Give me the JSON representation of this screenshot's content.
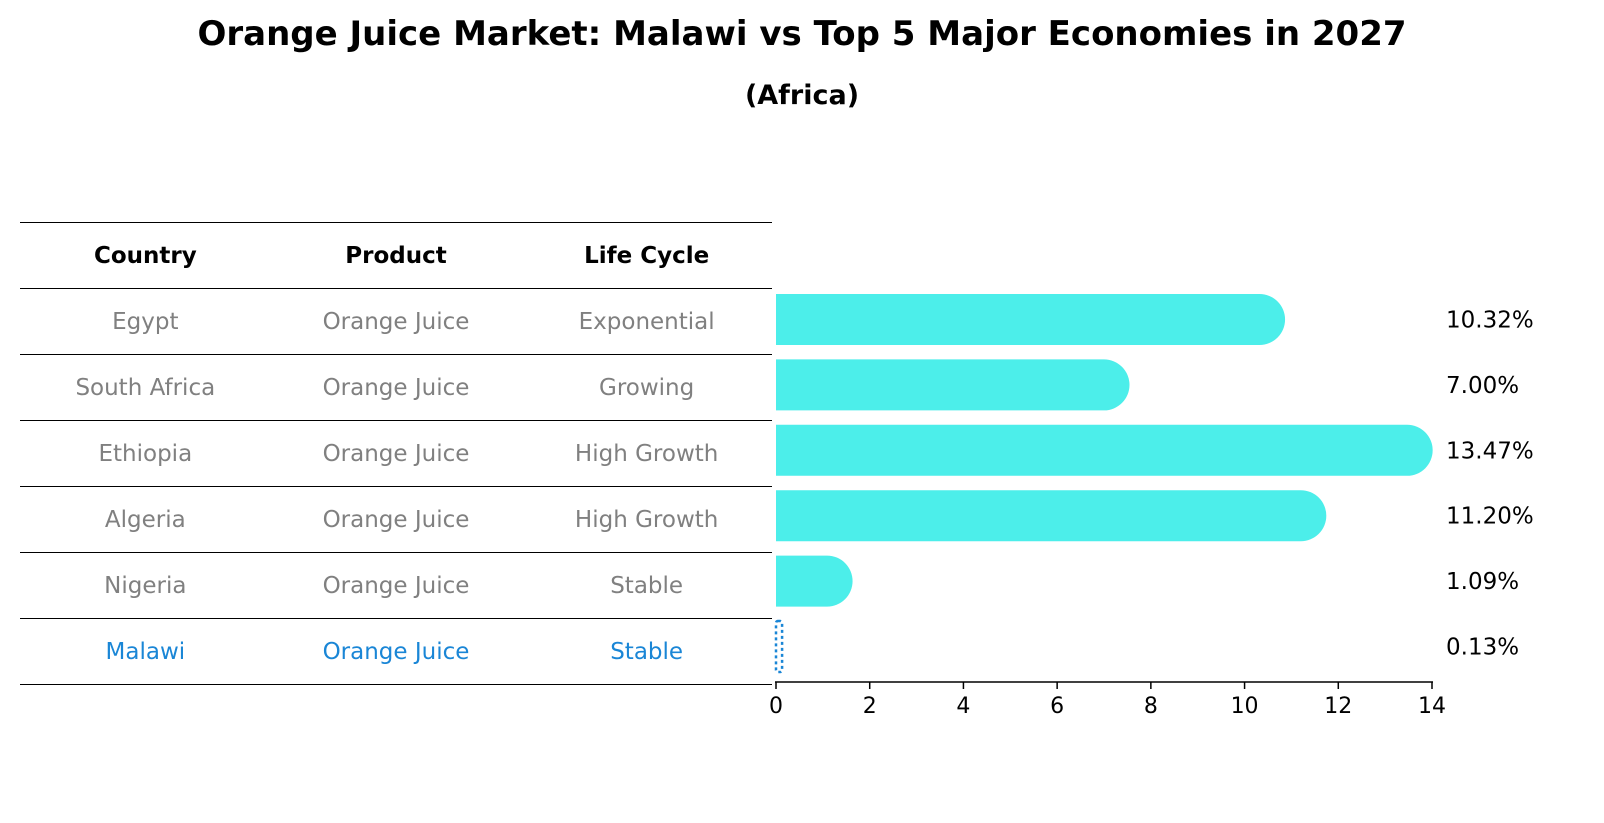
{
  "title": "Orange Juice Market: Malawi vs Top 5 Major Economies in 2027",
  "subtitle": "(Africa)",
  "table": {
    "headers": [
      "Country",
      "Product",
      "Life Cycle"
    ],
    "rows": [
      [
        "Egypt",
        "Orange Juice",
        "Exponential"
      ],
      [
        "South Africa",
        "Orange Juice",
        "Growing"
      ],
      [
        "Ethiopia",
        "Orange Juice",
        "High Growth"
      ],
      [
        "Algeria",
        "Orange Juice",
        "High Growth"
      ],
      [
        "Nigeria",
        "Orange Juice",
        "Stable"
      ],
      [
        "Malawi",
        "Orange Juice",
        "Stable"
      ]
    ]
  },
  "colors": {
    "bar": "#4ceeea",
    "highlight": "#1a86d6",
    "text_muted": "#808080"
  },
  "chart_data": {
    "type": "bar",
    "orientation": "horizontal",
    "categories": [
      "Egypt",
      "South Africa",
      "Ethiopia",
      "Algeria",
      "Nigeria",
      "Malawi"
    ],
    "values": [
      10.32,
      7.0,
      13.47,
      11.2,
      1.09,
      0.13
    ],
    "value_labels": [
      "10.32%",
      "7.00%",
      "13.47%",
      "11.20%",
      "1.09%",
      "0.13%"
    ],
    "highlight": "Malawi",
    "xlim": [
      0,
      14
    ],
    "xticks": [
      0,
      2,
      4,
      6,
      8,
      10,
      12,
      14
    ],
    "xlabel": "",
    "ylabel": ""
  }
}
